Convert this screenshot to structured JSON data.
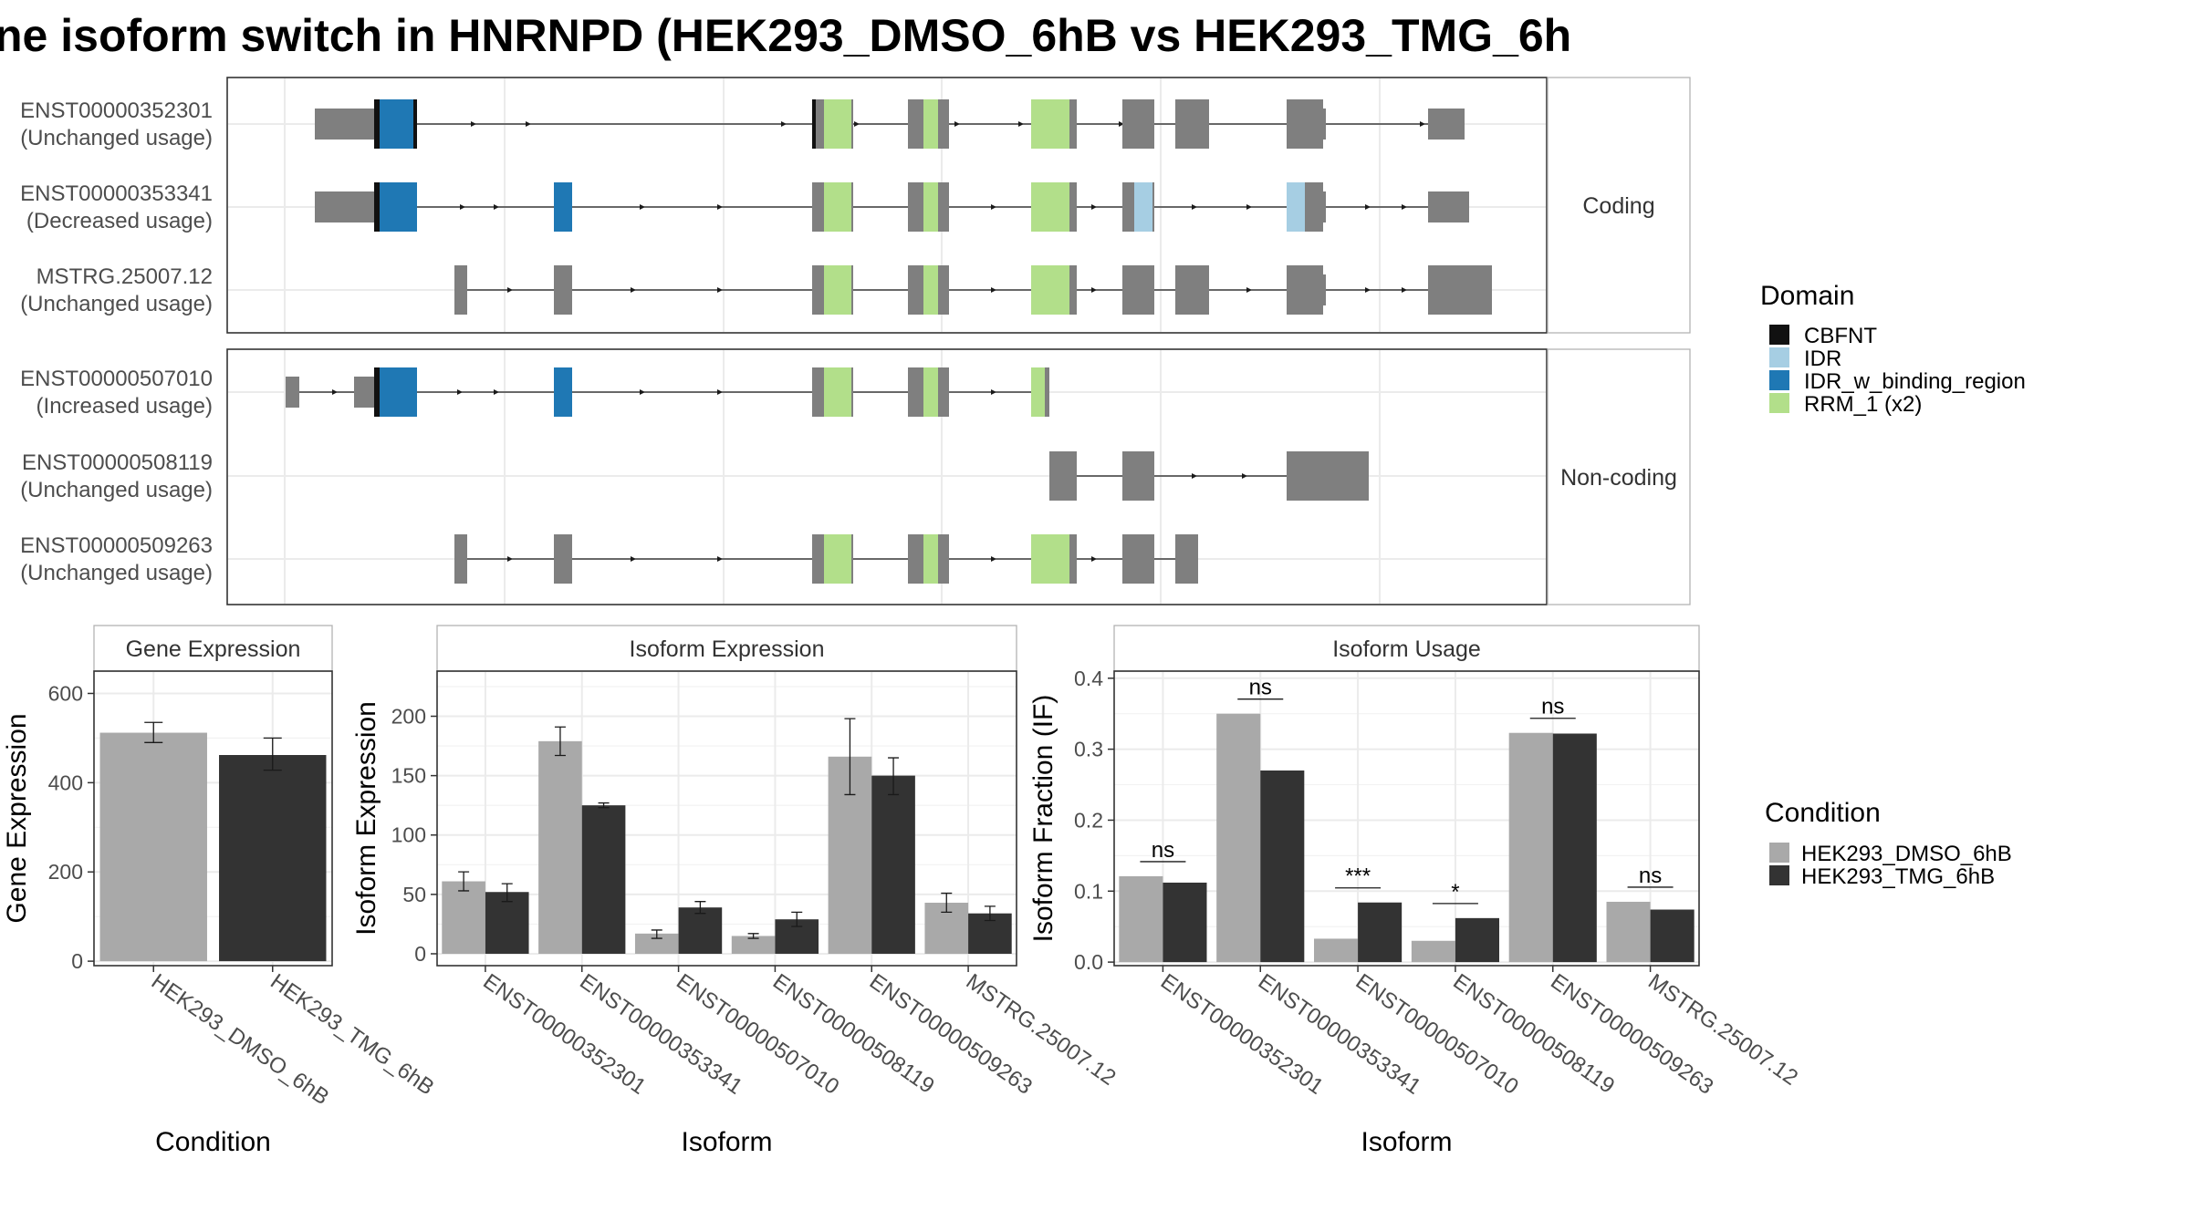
{
  "title": "ne isoform switch in HNRNPD (HEK293_DMSO_6hB vs HEK293_TMG_6h",
  "colors": {
    "exon": "#7f7f7f",
    "domains": {
      "CBFNT": "#111111",
      "IDR": "#a6cee3",
      "IDR_w_binding_region": "#1f78b4",
      "RRM_1 (x2)": "#b2df8a"
    },
    "conditions": {
      "HEK293_DMSO_6hB": "#a9a9a9",
      "HEK293_TMG_6hB": "#333333"
    }
  },
  "legends": {
    "domain": {
      "title": "Domain",
      "items": [
        "CBFNT",
        "IDR",
        "IDR_w_binding_region",
        "RRM_1 (x2)"
      ]
    },
    "condition": {
      "title": "Condition",
      "items": [
        "HEK293_DMSO_6hB",
        "HEK293_TMG_6hB"
      ]
    }
  },
  "isoform_structure": {
    "groups": [
      {
        "label": "Coding",
        "isoforms": [
          {
            "id": "ENST00000352301",
            "usage": "(Unchanged usage)"
          },
          {
            "id": "ENST00000353341",
            "usage": "(Decreased usage)"
          },
          {
            "id": "MSTRG.25007.12",
            "usage": "(Unchanged usage)"
          }
        ]
      },
      {
        "label": "Non-coding",
        "isoforms": [
          {
            "id": "ENST00000507010",
            "usage": "(Increased usage)"
          },
          {
            "id": "ENST00000508119",
            "usage": "(Unchanged usage)"
          },
          {
            "id": "ENST00000509263",
            "usage": "(Unchanged usage)"
          }
        ]
      }
    ]
  },
  "chart_data": [
    {
      "type": "bar",
      "panel": "Gene Expression",
      "xlabel": "Condition",
      "ylabel": "Gene Expression",
      "categories": [
        "HEK293_DMSO_6hB",
        "HEK293_TMG_6hB"
      ],
      "values": [
        512,
        462
      ],
      "errors": [
        [
          490,
          535
        ],
        [
          428,
          500
        ]
      ],
      "ylim": [
        -10,
        650
      ],
      "yticks": [
        0,
        200,
        400,
        600
      ]
    },
    {
      "type": "bar",
      "panel": "Isoform Expression",
      "xlabel": "Isoform",
      "ylabel": "Isoform Expression",
      "categories": [
        "ENST00000352301",
        "ENST00000353341",
        "ENST00000507010",
        "ENST00000508119",
        "ENST00000509263",
        "MSTRG.25007.12"
      ],
      "series": [
        {
          "name": "HEK293_DMSO_6hB",
          "values": [
            61,
            179,
            17,
            15,
            166,
            43
          ],
          "errors": [
            [
              53,
              69
            ],
            [
              167,
              191
            ],
            [
              13,
              20
            ],
            [
              13,
              17
            ],
            [
              134,
              198
            ],
            [
              35,
              51
            ]
          ]
        },
        {
          "name": "HEK293_TMG_6hB",
          "values": [
            52,
            125,
            39,
            29,
            150,
            34
          ],
          "errors": [
            [
              44,
              59
            ],
            [
              123,
              127
            ],
            [
              34,
              44
            ],
            [
              23,
              35
            ],
            [
              134,
              165
            ],
            [
              28,
              40
            ]
          ]
        }
      ],
      "ylim": [
        -10,
        238
      ],
      "yticks": [
        0,
        50,
        100,
        150,
        200
      ]
    },
    {
      "type": "bar",
      "panel": "Isoform Usage",
      "xlabel": "Isoform",
      "ylabel": "Isoform Fraction (IF)",
      "categories": [
        "ENST00000352301",
        "ENST00000353341",
        "ENST00000507010",
        "ENST00000508119",
        "ENST00000509263",
        "MSTRG.25007.12"
      ],
      "series": [
        {
          "name": "HEK293_DMSO_6hB",
          "values": [
            0.121,
            0.35,
            0.033,
            0.03,
            0.323,
            0.085
          ]
        },
        {
          "name": "HEK293_TMG_6hB",
          "values": [
            0.112,
            0.27,
            0.084,
            0.062,
            0.322,
            0.074
          ]
        }
      ],
      "significance": [
        "ns",
        "ns",
        "***",
        "*",
        "ns",
        "ns"
      ],
      "ylim": [
        -0.005,
        0.41
      ],
      "yticks": [
        "0.0",
        "0.1",
        "0.2",
        "0.3",
        "0.4"
      ]
    }
  ]
}
